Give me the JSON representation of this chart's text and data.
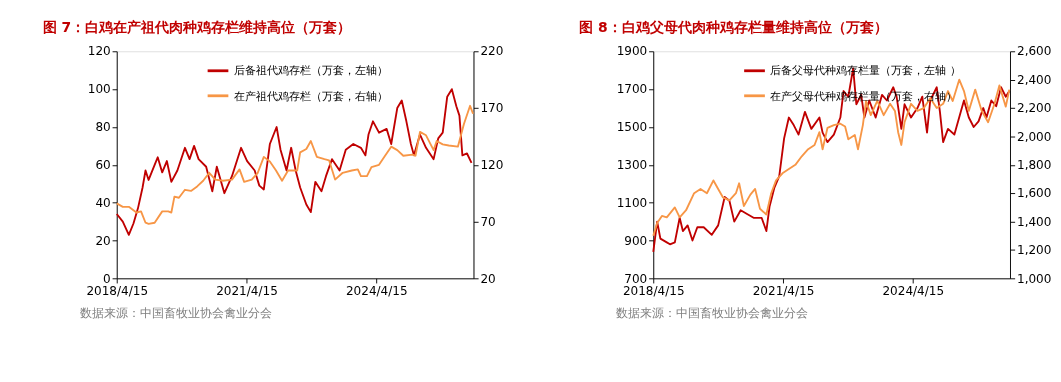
{
  "chart_data": [
    {
      "type": "line",
      "title": "图 7：白鸡在产祖代肉种鸡存栏维持高位（万套）",
      "legend": "top",
      "grid": false,
      "xlim": [
        "2018-04-15",
        "2026-07-15"
      ],
      "xticks": [
        {
          "value": "2018-04-15",
          "label": "2018/4/15"
        },
        {
          "value": "2021-04-15",
          "label": "2021/4/15"
        },
        {
          "value": "2024-04-15",
          "label": "2024/4/15"
        }
      ],
      "ylim": [
        0,
        120
      ],
      "yticks": [
        0,
        20,
        40,
        60,
        80,
        100,
        120
      ],
      "y2lim": [
        20,
        220
      ],
      "y2ticks": [
        20,
        70,
        120,
        170,
        220
      ],
      "annotations": [
        "数据来源：中国畜牧业协会禽业分会"
      ],
      "series": [
        {
          "name": "后备祖代鸡存栏（万套，左轴）",
          "color": "#c00000",
          "x": [
            "2018-04-15",
            "2018-06-05",
            "2018-07-26",
            "2018-09-03",
            "2018-10-11",
            "2018-11-19",
            "2018-12-14",
            "2019-01-09",
            "2019-03-01",
            "2019-03-27",
            "2019-05-04",
            "2019-06-12",
            "2019-07-20",
            "2019-09-09",
            "2019-11-12",
            "2019-12-21",
            "2020-01-28",
            "2020-03-06",
            "2020-05-09",
            "2020-06-30",
            "2020-08-07",
            "2020-10-10",
            "2020-12-13",
            "2021-02-28",
            "2021-04-20",
            "2021-06-23",
            "2021-08-01",
            "2021-09-08",
            "2021-10-29",
            "2021-12-25",
            "2022-01-27",
            "2022-03-19",
            "2022-04-27",
            "2022-06-04",
            "2022-07-12",
            "2022-09-02",
            "2022-10-10",
            "2022-11-17",
            "2023-01-08",
            "2023-02-15",
            "2023-04-07",
            "2023-06-10",
            "2023-08-01",
            "2023-10-04",
            "2023-12-07",
            "2024-01-14",
            "2024-02-09",
            "2024-03-18",
            "2024-05-08",
            "2024-07-11",
            "2024-08-19",
            "2024-10-09",
            "2024-11-16",
            "2024-12-25",
            "2025-02-01",
            "2025-02-27",
            "2025-04-19",
            "2025-06-09",
            "2025-08-12",
            "2025-09-20",
            "2025-10-28",
            "2025-12-05",
            "2026-01-13",
            "2026-02-20",
            "2026-03-18",
            "2026-04-12",
            "2026-05-21",
            "2026-06-28"
          ],
          "values": [
            34,
            30,
            23,
            29,
            37,
            48,
            57,
            52,
            60,
            64,
            56,
            62,
            51,
            57,
            69,
            63,
            70,
            63,
            59,
            46,
            59,
            45,
            54,
            69,
            62,
            57,
            49,
            47,
            71,
            80,
            68,
            57,
            69,
            57,
            48,
            39,
            35,
            51,
            46,
            54,
            63,
            57,
            68,
            71,
            69,
            65,
            76,
            83,
            77,
            79,
            71,
            90,
            94,
            83,
            71,
            65,
            76,
            69,
            63,
            74,
            77,
            96,
            100,
            91,
            86,
            65,
            66,
            61
          ]
        },
        {
          "name": "在产祖代鸡存栏（万套，右轴）",
          "color": "#f79646",
          "axis": "y2",
          "x": [
            "2018-04-15",
            "2018-06-05",
            "2018-07-26",
            "2018-09-28",
            "2018-11-06",
            "2018-12-14",
            "2019-01-09",
            "2019-03-01",
            "2019-05-04",
            "2019-06-24",
            "2019-07-20",
            "2019-08-15",
            "2019-09-22",
            "2019-11-12",
            "2020-01-02",
            "2020-02-23",
            "2020-04-14",
            "2020-06-04",
            "2020-07-25",
            "2020-09-27",
            "2020-12-13",
            "2021-02-15",
            "2021-03-26",
            "2021-05-29",
            "2021-07-19",
            "2021-09-08",
            "2021-10-29",
            "2021-12-20",
            "2022-02-09",
            "2022-04-01",
            "2022-06-17",
            "2022-07-12",
            "2022-09-02",
            "2022-10-10",
            "2022-11-30",
            "2023-02-02",
            "2023-03-13",
            "2023-05-03",
            "2023-07-06",
            "2023-09-21",
            "2023-11-11",
            "2023-12-07",
            "2024-01-27",
            "2024-03-05",
            "2024-05-08",
            "2024-06-28",
            "2024-08-19",
            "2024-10-09",
            "2024-11-29",
            "2025-02-14",
            "2025-03-12",
            "2025-04-19",
            "2025-06-09",
            "2025-08-12",
            "2025-09-07",
            "2025-10-28",
            "2025-12-18",
            "2026-03-05",
            "2026-04-25",
            "2026-06-16",
            "2026-07-11"
          ],
          "values": [
            86,
            83,
            83,
            78,
            79,
            69,
            68,
            69,
            79,
            79,
            78,
            92,
            91,
            98,
            97,
            101,
            106,
            113,
            107,
            106,
            107,
            116,
            105,
            107,
            113,
            127,
            123,
            115,
            106,
            115,
            115,
            131,
            134,
            141,
            127,
            125,
            124,
            107,
            113,
            115,
            116,
            110,
            110,
            118,
            120,
            128,
            136,
            133,
            128,
            129,
            128,
            149,
            146,
            133,
            141,
            138,
            137,
            136,
            156,
            172,
            165
          ]
        }
      ]
    },
    {
      "type": "line",
      "title": "图 8：白鸡父母代肉种鸡存栏量维持高位（万套）",
      "legend": "top",
      "grid": false,
      "xlim": [
        "2018-04-15",
        "2026-07-15"
      ],
      "xticks": [
        {
          "value": "2018-04-15",
          "label": "2018/4/15"
        },
        {
          "value": "2021-04-15",
          "label": "2021/4/15"
        },
        {
          "value": "2024-04-15",
          "label": "2024/4/15"
        }
      ],
      "ylim": [
        700,
        1900
      ],
      "yticks": [
        700,
        900,
        1100,
        1300,
        1500,
        1700,
        1900
      ],
      "y2lim": [
        1000,
        2600
      ],
      "y2ticks": [
        {
          "value": 1000,
          "label": "1,000"
        },
        {
          "value": 1200,
          "label": "1,200"
        },
        {
          "value": 1400,
          "label": "1,400"
        },
        {
          "value": 1600,
          "label": "1,600"
        },
        {
          "value": 1800,
          "label": "1,800"
        },
        {
          "value": 2000,
          "label": "2,000"
        },
        {
          "value": 2200,
          "label": "2,200"
        },
        {
          "value": 2400,
          "label": "2,400"
        },
        {
          "value": 2600,
          "label": "2,600"
        }
      ],
      "annotations": [
        "数据来源：中国畜牧业协会禽业分会"
      ],
      "series": [
        {
          "name": "后备父母代种鸡存栏量（万套，左轴 ）",
          "color": "#c00000",
          "x": [
            "2018-04-15",
            "2018-05-18",
            "2018-06-14",
            "2018-08-07",
            "2018-09-03",
            "2018-10-14",
            "2018-11-24",
            "2018-12-21",
            "2019-01-30",
            "2019-03-12",
            "2019-04-22",
            "2019-06-15",
            "2019-08-22",
            "2019-10-15",
            "2019-12-09",
            "2020-01-18",
            "2020-02-28",
            "2020-04-22",
            "2020-06-15",
            "2020-08-09",
            "2020-10-16",
            "2020-11-25",
            "2020-12-22",
            "2021-02-01",
            "2021-03-14",
            "2021-04-24",
            "2021-06-03",
            "2021-07-14",
            "2021-08-24",
            "2021-10-17",
            "2021-12-10",
            "2022-02-16",
            "2022-03-15",
            "2022-04-25",
            "2022-06-18",
            "2022-08-12",
            "2022-09-08",
            "2022-10-18",
            "2022-11-28",
            "2022-12-25",
            "2023-02-04",
            "2023-03-03",
            "2023-04-13",
            "2023-06-06",
            "2023-07-30",
            "2023-09-09",
            "2023-11-02",
            "2023-11-30",
            "2024-01-09",
            "2024-02-05",
            "2024-03-31",
            "2024-05-24",
            "2024-07-04",
            "2024-08-13",
            "2024-09-09",
            "2024-11-03",
            "2024-11-30",
            "2024-12-27",
            "2025-02-06",
            "2025-04-01",
            "2025-05-25",
            "2025-06-21",
            "2025-08-01",
            "2025-09-11",
            "2025-10-22",
            "2025-12-01",
            "2025-12-28",
            "2026-02-07",
            "2026-03-20",
            "2026-04-30",
            "2026-06-09",
            "2026-07-09"
          ],
          "values": [
            840,
            1000,
            910,
            890,
            880,
            890,
            1020,
            950,
            980,
            900,
            970,
            970,
            930,
            980,
            1130,
            1110,
            1000,
            1060,
            1040,
            1020,
            1020,
            950,
            1080,
            1180,
            1240,
            1440,
            1550,
            1510,
            1460,
            1580,
            1490,
            1550,
            1470,
            1420,
            1460,
            1550,
            1690,
            1660,
            1810,
            1620,
            1670,
            1550,
            1640,
            1550,
            1670,
            1640,
            1710,
            1660,
            1490,
            1620,
            1550,
            1600,
            1660,
            1470,
            1640,
            1710,
            1580,
            1420,
            1490,
            1460,
            1580,
            1640,
            1550,
            1500,
            1530,
            1600,
            1550,
            1640,
            1610,
            1710,
            1660,
            1690
          ]
        },
        {
          "name": "在产父母代种鸡存栏量（万套，右轴）",
          "color": "#f79646",
          "axis": "y2",
          "x": [
            "2018-04-15",
            "2018-05-18",
            "2018-06-27",
            "2018-08-07",
            "2018-10-14",
            "2018-11-24",
            "2019-01-17",
            "2019-03-26",
            "2019-05-19",
            "2019-07-12",
            "2019-09-05",
            "2019-10-15",
            "2019-11-25",
            "2020-01-18",
            "2020-03-13",
            "2020-04-09",
            "2020-05-19",
            "2020-07-13",
            "2020-08-22",
            "2020-10-02",
            "2020-11-25",
            "2021-01-05",
            "2021-02-15",
            "2021-04-10",
            "2021-06-03",
            "2021-07-28",
            "2021-09-20",
            "2021-11-13",
            "2022-01-06",
            "2022-02-16",
            "2022-03-15",
            "2022-04-25",
            "2022-06-18",
            "2022-08-12",
            "2022-09-21",
            "2022-10-18",
            "2022-12-12",
            "2023-01-08",
            "2023-02-18",
            "2023-03-17",
            "2023-04-26",
            "2023-06-20",
            "2023-08-13",
            "2023-10-06",
            "2023-11-16",
            "2023-12-13",
            "2024-01-09",
            "2024-02-05",
            "2024-03-31",
            "2024-05-24",
            "2024-07-17",
            "2024-09-09",
            "2024-11-03",
            "2024-12-27",
            "2025-02-06",
            "2025-03-18",
            "2025-05-12",
            "2025-06-21",
            "2025-08-01",
            "2025-09-24",
            "2025-11-18",
            "2026-01-11",
            "2026-03-06",
            "2026-04-16",
            "2026-06-09",
            "2026-07-09"
          ],
          "values": [
            1300,
            1390,
            1440,
            1430,
            1500,
            1430,
            1480,
            1600,
            1630,
            1600,
            1690,
            1630,
            1570,
            1550,
            1600,
            1670,
            1510,
            1590,
            1630,
            1490,
            1450,
            1600,
            1690,
            1740,
            1770,
            1800,
            1860,
            1910,
            1940,
            2030,
            1910,
            2060,
            2080,
            2090,
            2070,
            1980,
            2010,
            1910,
            2080,
            2250,
            2150,
            2250,
            2150,
            2230,
            2180,
            2030,
            1940,
            2100,
            2230,
            2180,
            2200,
            2270,
            2200,
            2230,
            2320,
            2250,
            2400,
            2320,
            2180,
            2330,
            2180,
            2100,
            2230,
            2360,
            2210,
            2330
          ]
        }
      ]
    }
  ]
}
